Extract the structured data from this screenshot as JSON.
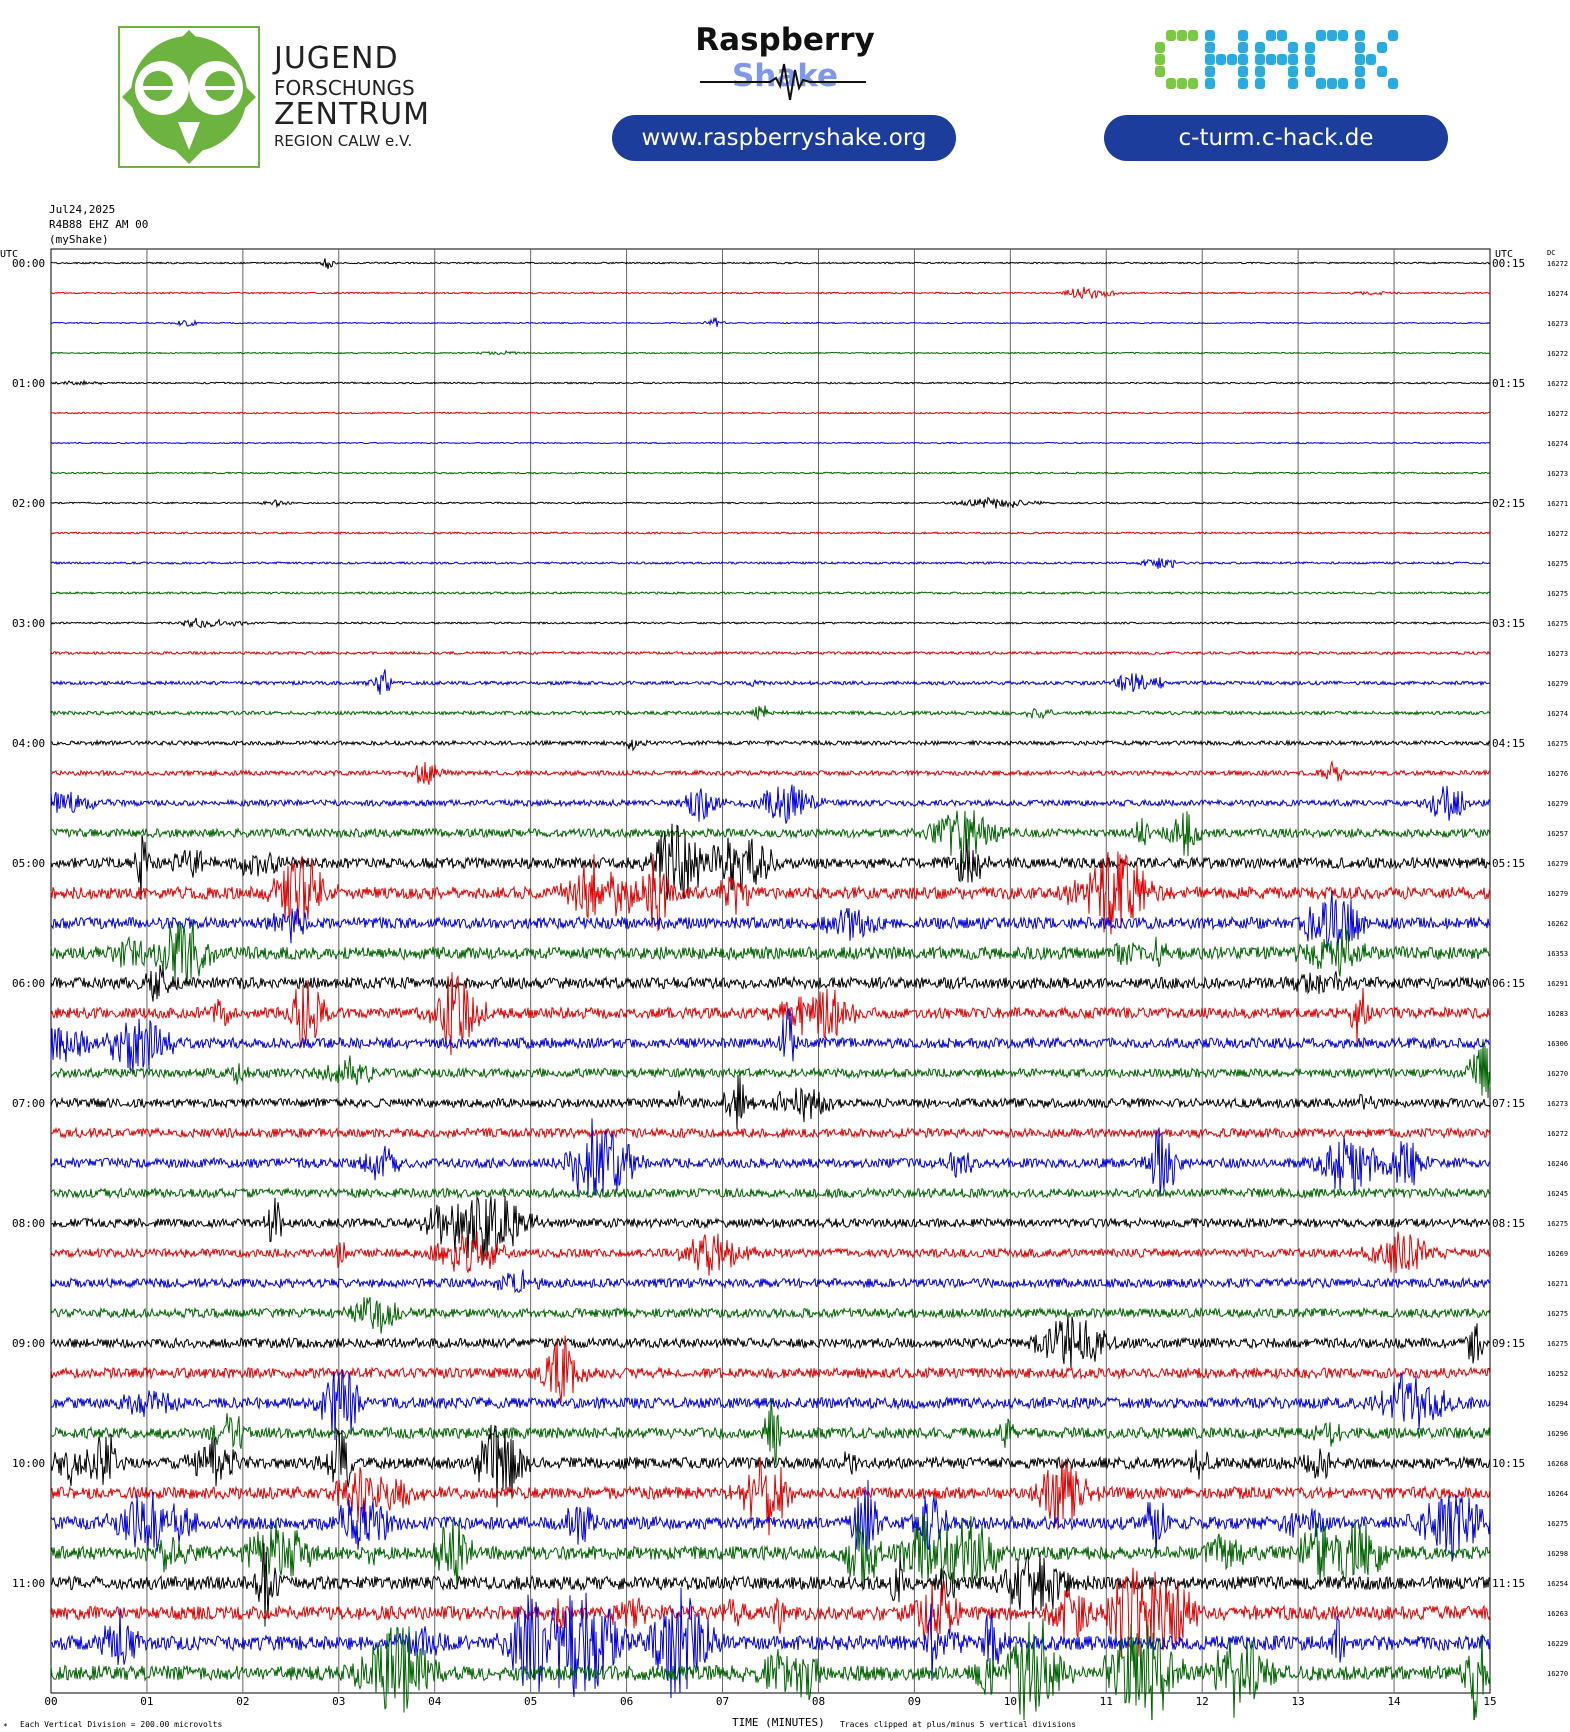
{
  "logos": {
    "jfz": {
      "line1": "JUGEND",
      "line2": "FORSCHUNGS",
      "line3": "ZENTRUM",
      "line4": "REGION CALW e.V.",
      "color": "#6db33f"
    },
    "raspberry_shake": {
      "word1": "Raspberry",
      "word2": "Shake",
      "url": "www.raspberryshake.org"
    },
    "chack": {
      "text": "CHACK",
      "url": "c-turm.c-hack.de",
      "color_c": "#7ac943",
      "color_hack": "#29abe2"
    },
    "pill_color": "#1d3d9c"
  },
  "header": {
    "date": "Jul24,2025",
    "station": "R4B88 EHZ AM 00",
    "source": "(myShake)"
  },
  "footer": {
    "division": "Each Vertical Division =  200.00 microvolts",
    "clip": "Traces clipped at plus/minus 5 vertical divisions",
    "star": "*"
  },
  "chart_data": {
    "type": "line",
    "subtype": "helicorder",
    "xlabel": "TIME (MINUTES)",
    "x_ticks": [
      "00",
      "01",
      "02",
      "03",
      "04",
      "05",
      "06",
      "07",
      "08",
      "09",
      "10",
      "11",
      "12",
      "13",
      "14",
      "15"
    ],
    "xlim": [
      0,
      15
    ],
    "left_axis_label": "UTC",
    "right_axis_label": "UTC",
    "dc_label": "DC",
    "left_time_labels": [
      "00:00",
      "01:00",
      "02:00",
      "03:00",
      "04:00",
      "05:00",
      "06:00",
      "07:00",
      "08:00",
      "09:00",
      "10:00",
      "11:00"
    ],
    "right_time_labels": [
      "00:15",
      "01:15",
      "02:15",
      "03:15",
      "04:15",
      "05:15",
      "06:15",
      "07:15",
      "08:15",
      "09:15",
      "10:15",
      "11:15"
    ],
    "trace_colors": [
      "#000000",
      "#e00000",
      "#0000e0",
      "#006400"
    ],
    "dc_values": [
      "16272",
      "16274",
      "16273",
      "16272",
      "16272",
      "16272",
      "16274",
      "16273",
      "16271",
      "16272",
      "16275",
      "16275",
      "16275",
      "16273",
      "16279",
      "16274",
      "16275",
      "16276",
      "16279",
      "16257",
      "16279",
      "16279",
      "16262",
      "16353",
      "16291",
      "16283",
      "16306",
      "16270",
      "16273",
      "16272",
      "16246",
      "16245",
      "16275",
      "16269",
      "16271",
      "16275",
      "16275",
      "16252",
      "16294",
      "16296",
      "16268",
      "16264",
      "16275",
      "16298",
      "16254",
      "16263",
      "16229",
      "16270"
    ],
    "trace_amplitude": [
      0.05,
      0.05,
      0.04,
      0.04,
      0.05,
      0.05,
      0.04,
      0.05,
      0.05,
      0.06,
      0.07,
      0.07,
      0.06,
      0.09,
      0.12,
      0.12,
      0.14,
      0.16,
      0.2,
      0.28,
      0.36,
      0.4,
      0.38,
      0.42,
      0.38,
      0.36,
      0.34,
      0.3,
      0.3,
      0.3,
      0.32,
      0.3,
      0.3,
      0.28,
      0.3,
      0.3,
      0.32,
      0.34,
      0.36,
      0.36,
      0.38,
      0.4,
      0.42,
      0.44,
      0.44,
      0.46,
      0.48,
      0.5
    ]
  }
}
